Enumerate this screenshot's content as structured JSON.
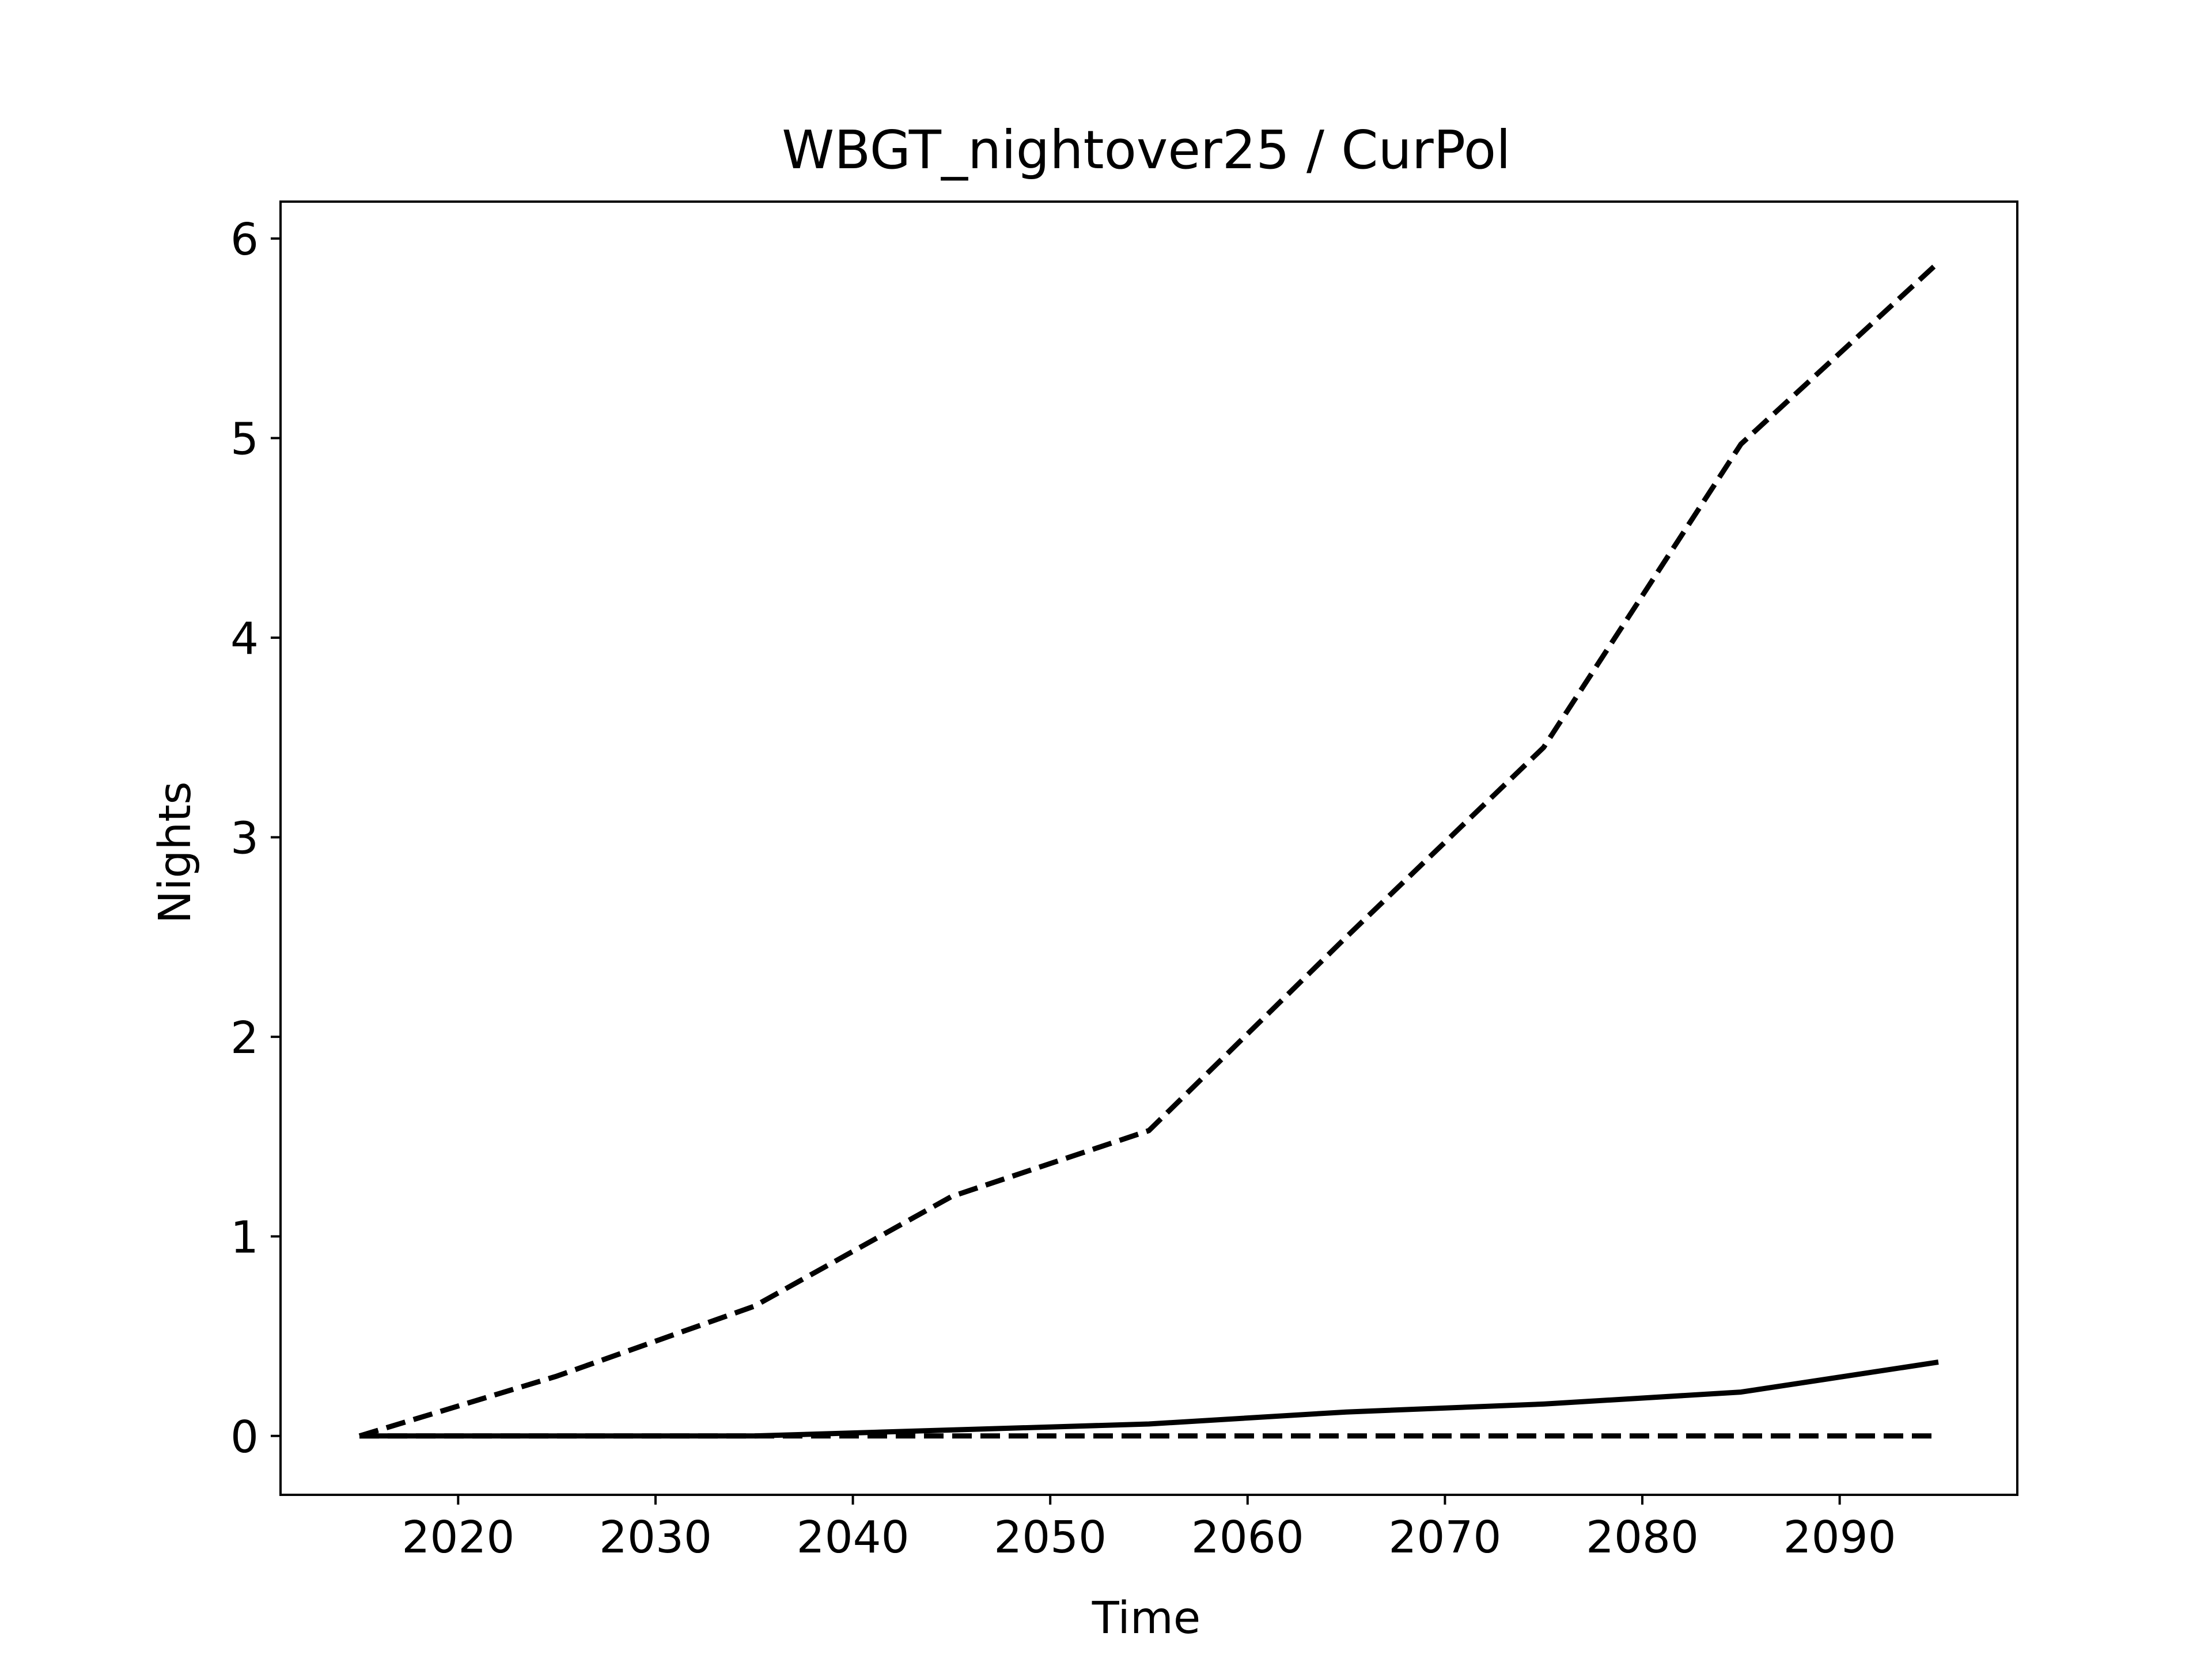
{
  "chart_data": {
    "type": "line",
    "title": "WBGT_nightover25 / CurPol",
    "xlabel": "Time",
    "ylabel": "Nights",
    "xlim": [
      2011,
      2099
    ],
    "ylim": [
      -0.295,
      6.185
    ],
    "xticks": [
      2020,
      2030,
      2040,
      2050,
      2060,
      2070,
      2080,
      2090
    ],
    "yticks": [
      0,
      1,
      2,
      3,
      4,
      5,
      6
    ],
    "grid": false,
    "legend": null,
    "line_color": "#000000",
    "series": [
      {
        "style": "dashed",
        "x": [
          2015,
          2025,
          2035,
          2045,
          2055,
          2065,
          2075,
          2085,
          2095
        ],
        "values": [
          0.0,
          0.3,
          0.65,
          1.2,
          1.53,
          2.5,
          3.45,
          4.97,
          5.88
        ]
      },
      {
        "style": "solid",
        "x": [
          2015,
          2025,
          2035,
          2045,
          2055,
          2065,
          2075,
          2085,
          2095
        ],
        "values": [
          0.0,
          0.0,
          0.0,
          0.03,
          0.06,
          0.12,
          0.16,
          0.22,
          0.37
        ]
      },
      {
        "style": "dashed",
        "x": [
          2015,
          2025,
          2035,
          2045,
          2055,
          2065,
          2075,
          2085,
          2095
        ],
        "values": [
          0.0,
          0.0,
          0.0,
          0.0,
          0.0,
          0.0,
          0.0,
          0.0,
          0.0
        ]
      }
    ]
  }
}
